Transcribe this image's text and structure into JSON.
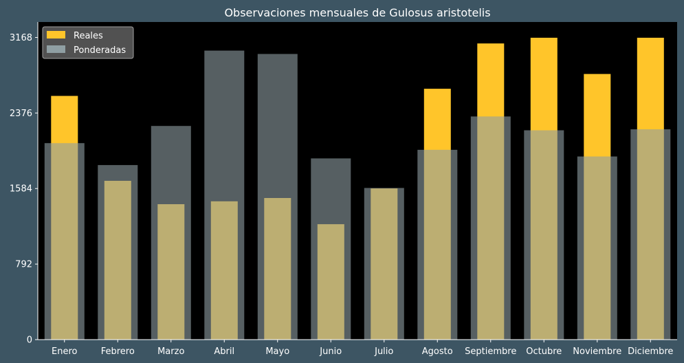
{
  "chart_data": {
    "type": "bar",
    "title": "Observaciones mensuales de Gulosus aristotelis",
    "xlabel": "",
    "ylabel": "",
    "categories": [
      "Enero",
      "Febrero",
      "Marzo",
      "Abril",
      "Mayo",
      "Junio",
      "Julio",
      "Agosto",
      "Septiembre",
      "Octubre",
      "Noviembre",
      "Diciembre"
    ],
    "series": [
      {
        "name": "Reales",
        "color": "#ffc52a",
        "values": [
          2555,
          1665,
          1420,
          1450,
          1485,
          1210,
          1585,
          2630,
          3105,
          3165,
          2785,
          3165
        ]
      },
      {
        "name": "Ponderadas",
        "color": "#8f9fa3",
        "values": [
          2060,
          1830,
          2240,
          3030,
          2995,
          1900,
          1590,
          1990,
          2340,
          2195,
          1920,
          2205
        ]
      }
    ],
    "yticks": [
      0,
      792,
      1584,
      2376,
      3168
    ],
    "ylim": [
      0,
      3330
    ],
    "grid": false,
    "legend_position": "top-left",
    "colors": {
      "background": "#3d5563",
      "plot_background": "#000000",
      "text": "#ffffff",
      "blend": "#d6cf8a"
    }
  }
}
